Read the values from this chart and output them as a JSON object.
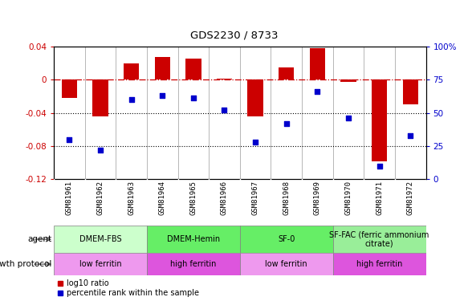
{
  "title": "GDS2230 / 8733",
  "samples": [
    "GSM81961",
    "GSM81962",
    "GSM81963",
    "GSM81964",
    "GSM81965",
    "GSM81966",
    "GSM81967",
    "GSM81968",
    "GSM81969",
    "GSM81970",
    "GSM81971",
    "GSM81972"
  ],
  "log10_ratio": [
    -0.022,
    -0.044,
    0.02,
    0.028,
    0.026,
    0.001,
    -0.044,
    0.015,
    0.038,
    -0.003,
    -0.099,
    -0.03
  ],
  "percentile_rank": [
    30,
    22,
    60,
    63,
    61,
    52,
    28,
    42,
    66,
    46,
    10,
    33
  ],
  "ylim_left": [
    -0.12,
    0.04
  ],
  "ylim_right": [
    0,
    100
  ],
  "left_yticks": [
    -0.12,
    -0.08,
    -0.04,
    0,
    0.04
  ],
  "right_yticks": [
    0,
    25,
    50,
    75,
    100
  ],
  "bar_color": "#CC0000",
  "dot_color": "#0000CC",
  "ref_line_color": "#CC0000",
  "dotted_line_color": "#000000",
  "sample_bg_color": "#d0d0d0",
  "agent_groups": [
    {
      "label": "DMEM-FBS",
      "start": 0,
      "end": 3,
      "color": "#ccffcc"
    },
    {
      "label": "DMEM-Hemin",
      "start": 3,
      "end": 6,
      "color": "#66ee66"
    },
    {
      "label": "SF-0",
      "start": 6,
      "end": 9,
      "color": "#66ee66"
    },
    {
      "label": "SF-FAC (ferric ammonium\ncitrate)",
      "start": 9,
      "end": 12,
      "color": "#99ee99"
    }
  ],
  "growth_groups": [
    {
      "label": "low ferritin",
      "start": 0,
      "end": 3,
      "color": "#ee99ee"
    },
    {
      "label": "high ferritin",
      "start": 3,
      "end": 6,
      "color": "#dd55dd"
    },
    {
      "label": "low ferritin",
      "start": 6,
      "end": 9,
      "color": "#ee99ee"
    },
    {
      "label": "high ferritin",
      "start": 9,
      "end": 12,
      "color": "#dd55dd"
    }
  ],
  "legend_items": [
    {
      "label": "log10 ratio",
      "color": "#CC0000"
    },
    {
      "label": "percentile rank within the sample",
      "color": "#0000CC"
    }
  ]
}
